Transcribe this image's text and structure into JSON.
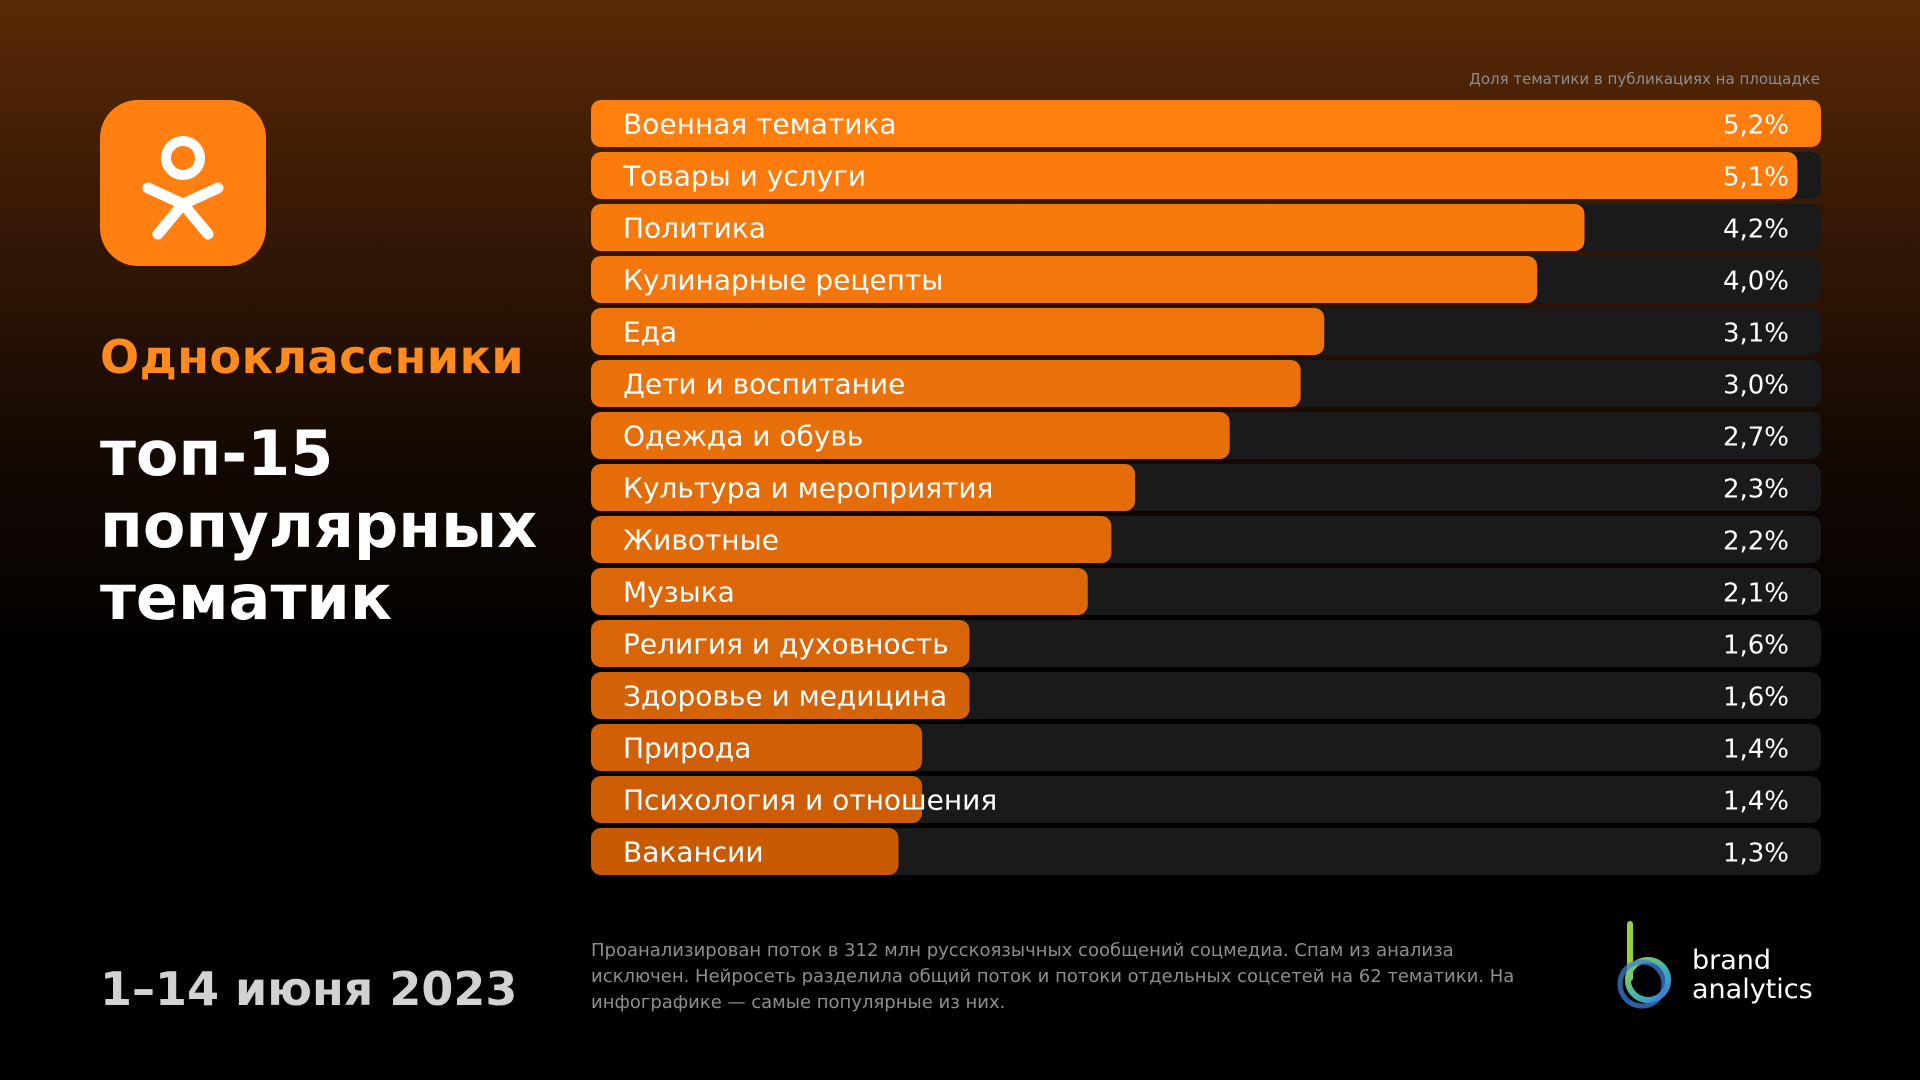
{
  "header": {
    "brand_name": "Одноклассники",
    "headline": "топ-15 популярных тематик",
    "date": "1–14 июня 2023"
  },
  "icons": {
    "platform_logo": "odnoklassniki-logo-icon",
    "vendor_logo": "brand-analytics-logo-icon"
  },
  "colors": {
    "accent": "#ff7f11",
    "bar_track": "#1a1a1a"
  },
  "chart_data": {
    "type": "bar",
    "orientation": "horizontal",
    "caption": "Доля тематики в публикациях на площадке",
    "categories": [
      "Военная тематика",
      "Товары и услуги",
      "Политика",
      "Кулинарные рецепты",
      "Еда",
      "Дети и воспитание",
      "Одежда и обувь",
      "Культура и мероприятия",
      "Животные",
      "Музыка",
      "Религия и духовность",
      "Здоровье и медицина",
      "Природа",
      "Психология и отношения",
      "Вакансии"
    ],
    "values": [
      5.2,
      5.1,
      4.2,
      4.0,
      3.1,
      3.0,
      2.7,
      2.3,
      2.2,
      2.1,
      1.6,
      1.6,
      1.4,
      1.4,
      1.3
    ],
    "value_labels": [
      "5,2%",
      "5,1%",
      "4,2%",
      "4,0%",
      "3,1%",
      "3,0%",
      "2,7%",
      "2,3%",
      "2,2%",
      "2,1%",
      "1,6%",
      "1,6%",
      "1,4%",
      "1,4%",
      "1,3%"
    ],
    "unit": "%",
    "xlim": [
      0,
      5.2
    ],
    "grid": false,
    "legend": "none"
  },
  "footer": {
    "footnote": "Проанализирован поток в 312 млн русскоязычных сообщений соцмедиа. Спам из анализа исключен. Нейросеть разделила общий поток и потоки отдельных соцсетей на 62 тематики. На инфографике — самые популярные из них.",
    "vendor_line1": "brand",
    "vendor_line2": "analytics"
  }
}
